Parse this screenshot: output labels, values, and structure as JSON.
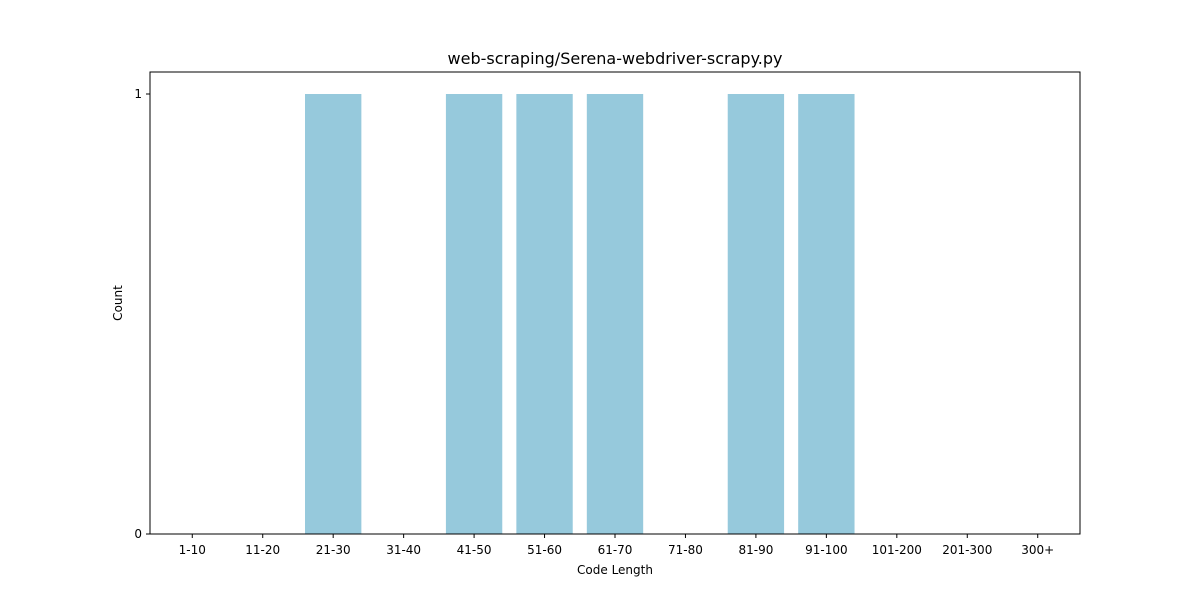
{
  "chart_data": {
    "type": "bar",
    "title": "web-scraping/Serena-webdriver-scrapy.py",
    "xlabel": "Code Length",
    "ylabel": "Count",
    "categories": [
      "1-10",
      "11-20",
      "21-30",
      "31-40",
      "41-50",
      "51-60",
      "61-70",
      "71-80",
      "81-90",
      "91-100",
      "101-200",
      "201-300",
      "300+"
    ],
    "values": [
      0,
      0,
      1,
      0,
      1,
      1,
      1,
      0,
      1,
      1,
      0,
      0,
      0
    ],
    "ylim": [
      0,
      1.05
    ],
    "yticks": [
      0,
      1
    ],
    "grid": false,
    "bar_color": "#96c9dc"
  }
}
